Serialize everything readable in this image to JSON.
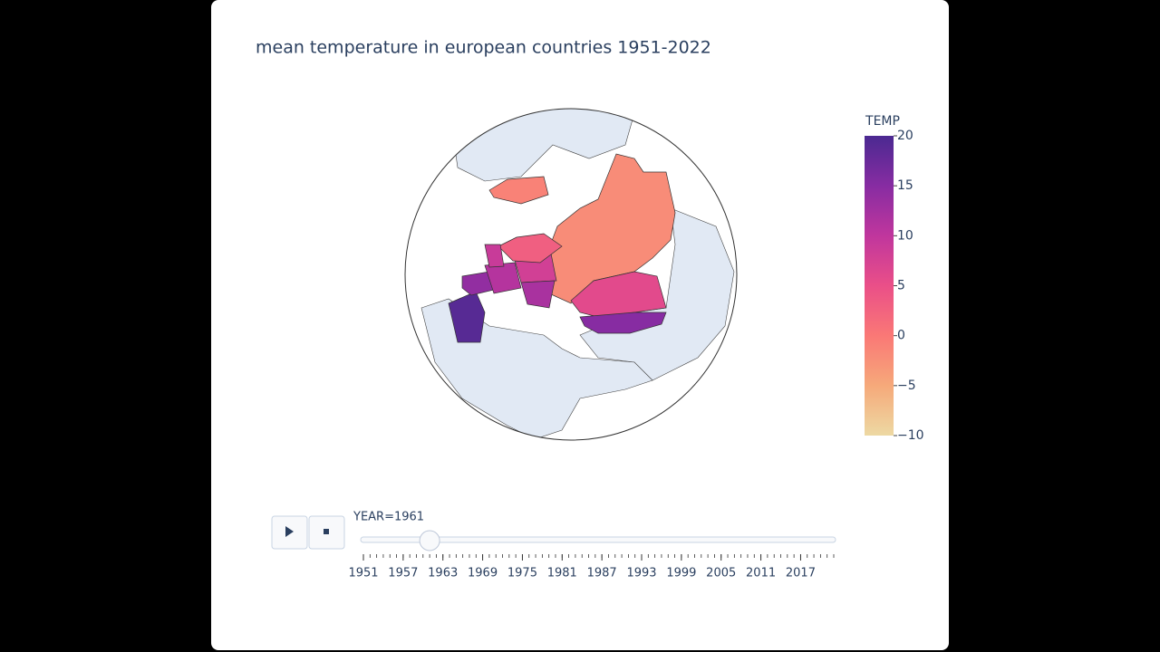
{
  "chart_data": {
    "type": "choropleth",
    "title": "mean temperature in european countries 1951-2022",
    "values": [
      -2,
      -1,
      6,
      15,
      19,
      14,
      11,
      8,
      12,
      3,
      9
    ],
    "colorscale": [
      "#edd9a3",
      "#f6a97a",
      "#fa7876",
      "#ea4f88",
      "#c0369d",
      "#872ca2",
      "#4b2991"
    ],
    "colorbar": {
      "title": "TEMP",
      "range": [
        -10,
        20
      ],
      "ticks": [
        {
          "value": -10,
          "label": "−10"
        },
        {
          "value": -5,
          "label": "−5"
        },
        0,
        5,
        10,
        15,
        20
      ]
    },
    "slider": {
      "label": "YEAR=1961",
      "value": 1961,
      "range": [
        1951,
        2022
      ],
      "ticks": [
        1951,
        1957,
        1963,
        1969,
        1975,
        1981,
        1987,
        1993,
        1999,
        2005,
        2011,
        2017
      ]
    }
  }
}
